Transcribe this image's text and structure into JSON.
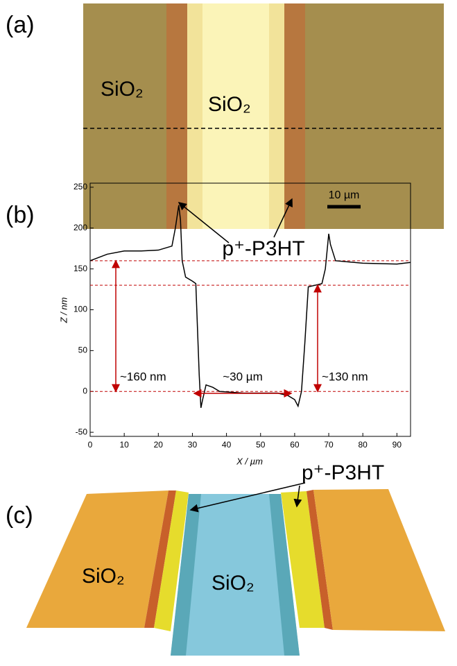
{
  "panel_a": {
    "label": "(a)",
    "left_region": "SiO₂",
    "center_region": "SiO₂",
    "scale_bar": "10 µm",
    "pointer_label": "p⁺-P3HT"
  },
  "chart_data": {
    "type": "line",
    "panel_label": "(b)",
    "xlabel": "X / µm",
    "ylabel": "Z / nm",
    "x": [
      0,
      5,
      10,
      15,
      20,
      24,
      25,
      26,
      26.5,
      27,
      28,
      30,
      31,
      32,
      32.5,
      33,
      34,
      36,
      38,
      45,
      55,
      58,
      60,
      61,
      62,
      63,
      64,
      66,
      68,
      69,
      70,
      70.5,
      72,
      80,
      90,
      94
    ],
    "values": [
      160,
      168,
      172,
      172,
      173,
      178,
      200,
      228,
      210,
      160,
      140,
      135,
      132,
      20,
      -20,
      -10,
      8,
      5,
      0,
      -2,
      -2,
      -5,
      -10,
      -18,
      0,
      60,
      128,
      130,
      132,
      150,
      193,
      180,
      160,
      157,
      156,
      158
    ],
    "color": "#000000",
    "xlim": [
      0,
      94
    ],
    "xticks": [
      0,
      10,
      20,
      30,
      40,
      50,
      60,
      70,
      80,
      90
    ],
    "ylim": [
      -55,
      255
    ],
    "yticks": [
      -50,
      0,
      50,
      100,
      150,
      200,
      250
    ],
    "reference_lines": [
      160,
      130,
      0
    ],
    "reference_color": "#c00000",
    "annotations": [
      "~160 nm",
      "~30 µm",
      "~130 nm"
    ]
  },
  "panel_c": {
    "label": "(c)",
    "left_region": "SiO₂",
    "center_region": "SiO₂",
    "pointer_label": "p⁺-P3HT"
  }
}
